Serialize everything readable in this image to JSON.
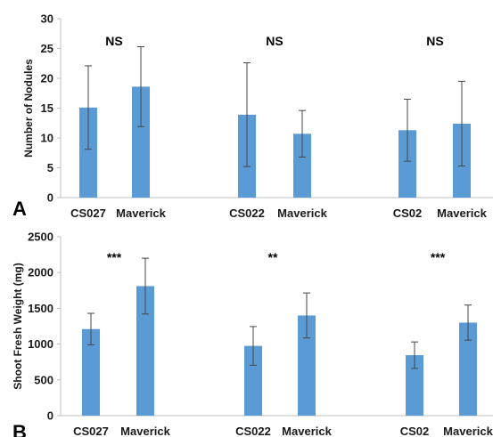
{
  "bar_color": "#5b9bd5",
  "error_color": "#444444",
  "chart_data": [
    {
      "type": "bar",
      "panel_label": "A",
      "title": "",
      "xlabel": "",
      "ylabel": "Number of Nodules",
      "ylim": [
        0,
        30
      ],
      "yticks": [
        0,
        5,
        10,
        15,
        20,
        25,
        30
      ],
      "categories": [
        "CS027",
        "Maverick",
        "CS022",
        "Maverick",
        "CS02",
        "Maverick"
      ],
      "values": [
        15.1,
        18.6,
        13.9,
        10.7,
        11.3,
        12.4
      ],
      "errors": [
        7.0,
        6.7,
        8.7,
        3.9,
        5.2,
        7.1
      ],
      "significance": [
        "NS",
        "NS",
        "NS"
      ],
      "grid": false
    },
    {
      "type": "bar",
      "panel_label": "B",
      "title": "",
      "xlabel": "",
      "ylabel": "Shoot Fresh Weight (mg)",
      "ylim": [
        0,
        2500
      ],
      "yticks": [
        0,
        500,
        1000,
        1500,
        2000,
        2500
      ],
      "categories": [
        "CS027",
        "Maverick",
        "CS022",
        "Maverick",
        "CS02",
        "Maverick"
      ],
      "values": [
        1210,
        1810,
        975,
        1400,
        845,
        1300
      ],
      "errors": [
        220,
        390,
        270,
        315,
        185,
        245
      ],
      "significance": [
        "***",
        "**",
        "***"
      ],
      "grid": false
    }
  ]
}
